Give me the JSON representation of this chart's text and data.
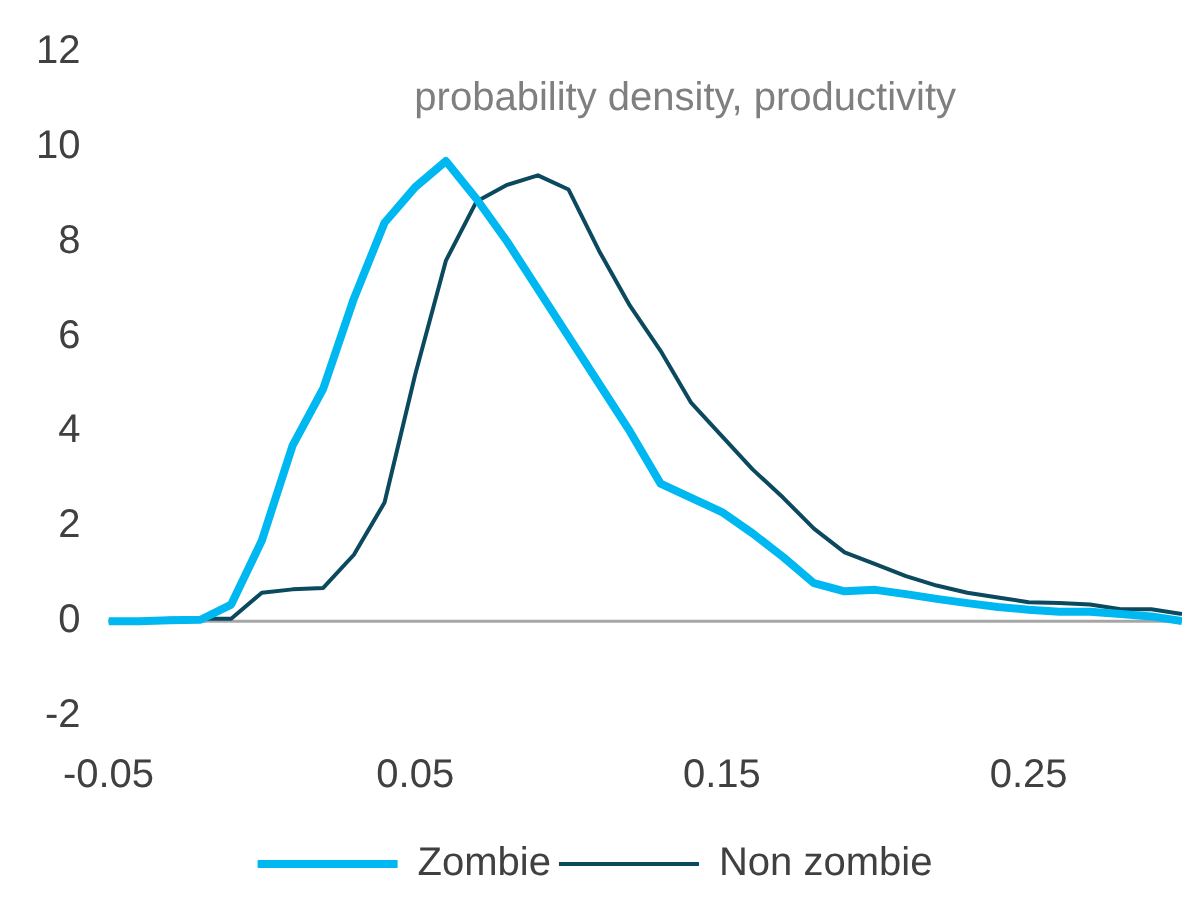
{
  "chart_data": {
    "type": "line",
    "title": "probability density, productivity",
    "x": [
      -0.05,
      -0.04,
      -0.03,
      -0.02,
      -0.01,
      0.0,
      0.01,
      0.02,
      0.03,
      0.04,
      0.05,
      0.06,
      0.07,
      0.08,
      0.09,
      0.1,
      0.11,
      0.12,
      0.13,
      0.14,
      0.15,
      0.16,
      0.17,
      0.18,
      0.19,
      0.2,
      0.21,
      0.22,
      0.23,
      0.24,
      0.25,
      0.26,
      0.27,
      0.28,
      0.29,
      0.3
    ],
    "series": [
      {
        "name": "Zombie",
        "color": "#00b8f1",
        "values": [
          0,
          0,
          0.02,
          0.03,
          0.35,
          1.7,
          3.7,
          4.9,
          6.8,
          8.4,
          9.15,
          9.7,
          8.9,
          8.0,
          7.0,
          6.0,
          5.0,
          4.0,
          2.9,
          2.6,
          2.3,
          1.85,
          1.35,
          0.8,
          0.63,
          0.66,
          0.57,
          0.47,
          0.38,
          0.3,
          0.24,
          0.2,
          0.2,
          0.15,
          0.1,
          0
        ]
      },
      {
        "name": "Non zombie",
        "color": "#0b4a5e",
        "values": [
          0,
          0.02,
          0.05,
          0.05,
          0.05,
          0.6,
          0.67,
          0.7,
          1.4,
          2.5,
          5.2,
          7.6,
          8.85,
          9.2,
          9.4,
          9.1,
          7.8,
          6.65,
          5.7,
          4.6,
          3.9,
          3.2,
          2.6,
          1.95,
          1.45,
          1.2,
          0.95,
          0.75,
          0.6,
          0.5,
          0.4,
          0.38,
          0.35,
          0.25,
          0.25,
          0.15
        ]
      }
    ],
    "xlim": [
      -0.05,
      0.3
    ],
    "xticks": [
      -0.05,
      0.05,
      0.15,
      0.25
    ],
    "ylim": [
      -2,
      12
    ],
    "yticks": [
      -2,
      0,
      2,
      4,
      6,
      8,
      10,
      12
    ],
    "ref_lines": [
      {
        "axis": "y",
        "value": 0,
        "color": "#a6a6a6"
      }
    ],
    "grid": false,
    "legend": "bottom",
    "marker": "none",
    "line_style": "solid"
  }
}
